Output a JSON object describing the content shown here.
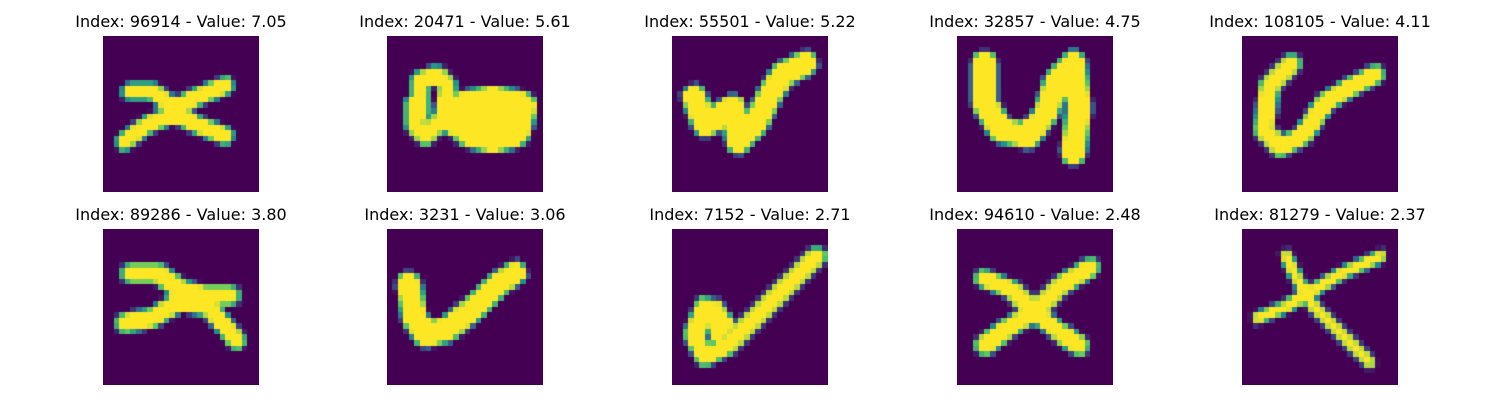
{
  "figure": {
    "colormap": "viridis",
    "background_color": "#440154",
    "stroke_color": "#fde725",
    "edge_color": "#21908d"
  },
  "samples": [
    {
      "title": "Index: 96914 - Value: 7.05",
      "glyph": "x"
    },
    {
      "title": "Index: 20471 - Value: 5.61",
      "glyph": "a"
    },
    {
      "title": "Index: 55501 - Value: 5.22",
      "glyph": "w"
    },
    {
      "title": "Index: 32857 - Value: 4.75",
      "glyph": "u"
    },
    {
      "title": "Index: 108105 - Value: 4.11",
      "glyph": "a"
    },
    {
      "title": "Index: 89286 - Value: 3.80",
      "glyph": "x"
    },
    {
      "title": "Index: 3231 - Value: 3.06",
      "glyph": "v"
    },
    {
      "title": "Index: 7152 - Value: 2.71",
      "glyph": "a"
    },
    {
      "title": "Index: 94610 - Value: 2.48",
      "glyph": "x"
    },
    {
      "title": "Index: 81279 - Value: 2.37",
      "glyph": "x"
    }
  ]
}
